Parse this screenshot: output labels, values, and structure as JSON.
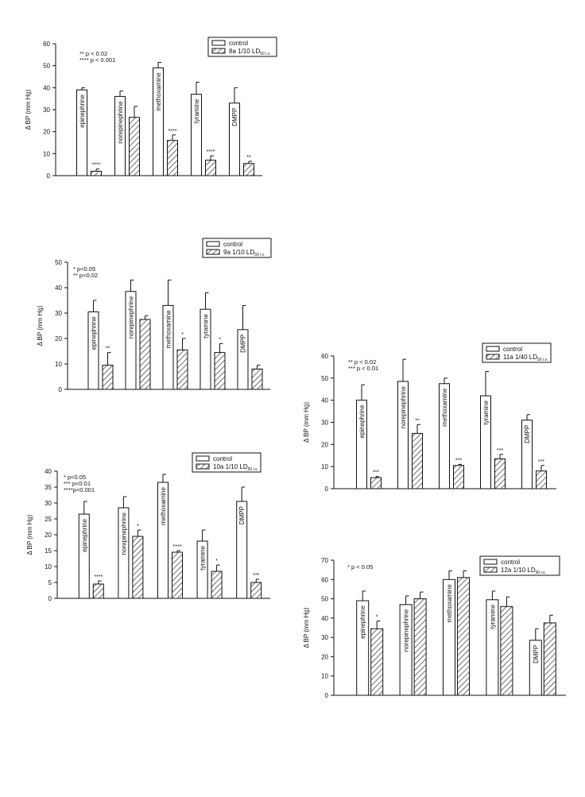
{
  "page": {
    "hatch_color": "#222222",
    "bar_fill_control": "#ffffff",
    "axis_color": "#111111"
  },
  "chart_data": [
    {
      "id": "chart-8a",
      "type": "bar",
      "ylabel": "Δ BP (mm Hg)",
      "ylim": [
        0,
        60
      ],
      "ytick_step": 10,
      "legend_position": "top-right",
      "legend": {
        "control": "control",
        "treated": "8a  1/10 LD",
        "treated_sub": "50 i.v."
      },
      "notes": [
        "** p < 0.02",
        "**** p < 0.001"
      ],
      "categories": [
        "epinephrine",
        "norepinephrine",
        "methoxamine",
        "tyramine",
        "DMPP"
      ],
      "series": [
        {
          "name": "control",
          "values": [
            39,
            36,
            49,
            37,
            33
          ],
          "errors": [
            1,
            2.5,
            2.5,
            5.5,
            7
          ],
          "stars": [
            "",
            "",
            "",
            "",
            ""
          ]
        },
        {
          "name": "8a  1/10 LD50 i.v.",
          "values": [
            2,
            26.5,
            16,
            7,
            5.5
          ],
          "errors": [
            1,
            5,
            2.5,
            2,
            1
          ],
          "stars": [
            "****",
            "",
            "****",
            "****",
            "**"
          ]
        }
      ]
    },
    {
      "id": "chart-9a",
      "type": "bar",
      "ylabel": "Δ BP (mm Hg)",
      "ylim": [
        0,
        50
      ],
      "ytick_step": 10,
      "legend_position": "top-right",
      "legend": {
        "control": "control",
        "treated": "9a  1/10 LD",
        "treated_sub": "50 i.v."
      },
      "notes": [
        "* p<0.05",
        "** p<0.02"
      ],
      "categories": [
        "epinephrine",
        "norepinephrine",
        "methoxamine",
        "tyramine",
        "DMPP"
      ],
      "series": [
        {
          "name": "control",
          "values": [
            30.5,
            38.5,
            33,
            31.5,
            23.5
          ],
          "errors": [
            4.5,
            4.5,
            10,
            6.5,
            9.5
          ],
          "stars": [
            "",
            "",
            "",
            "",
            ""
          ]
        },
        {
          "name": "9a  1/10 LD50 i.v.",
          "values": [
            9.5,
            27.5,
            15.5,
            14.5,
            8
          ],
          "errors": [
            5,
            1.5,
            4.5,
            3.5,
            1.5
          ],
          "stars": [
            "**",
            "",
            "*",
            "*",
            ""
          ]
        }
      ]
    },
    {
      "id": "chart-10a",
      "type": "bar",
      "ylabel": "Δ BP (mm Hg)",
      "ylim": [
        0,
        40
      ],
      "ytick_step": 5,
      "legend_position": "top-right",
      "legend": {
        "control": "control",
        "treated": "10a  1/10 LD",
        "treated_sub": "50 i.v."
      },
      "notes": [
        "* p<0.05",
        "*** p<0.01",
        "****p<0.001"
      ],
      "categories": [
        "epinephrine",
        "norepinephrine",
        "methoxamine",
        "tyramine",
        "DMPP"
      ],
      "series": [
        {
          "name": "control",
          "values": [
            26.5,
            28.5,
            36.5,
            18,
            30.5
          ],
          "errors": [
            4,
            3.5,
            2.5,
            3.5,
            4.5
          ],
          "stars": [
            "",
            "",
            "",
            "",
            ""
          ]
        },
        {
          "name": "10a  1/10 LD50 i.v.",
          "values": [
            4.5,
            19.5,
            14.5,
            8.5,
            5
          ],
          "errors": [
            1,
            2,
            0.5,
            2,
            1
          ],
          "stars": [
            "****",
            "*",
            "****",
            "*",
            "***"
          ]
        }
      ]
    },
    {
      "id": "chart-11a",
      "type": "bar",
      "ylabel": "Δ BP (mm Hg)",
      "ylim": [
        0,
        60
      ],
      "ytick_step": 10,
      "legend_position": "top-right",
      "legend": {
        "control": "control",
        "treated": "11a  1/40 LD",
        "treated_sub": "50 i.v."
      },
      "notes": [
        "** p < 0.02",
        "*** p < 0.01"
      ],
      "categories": [
        "epinephrine",
        "norepinephrine",
        "methoxamine",
        "tyramine",
        "DMPP"
      ],
      "series": [
        {
          "name": "control",
          "values": [
            40,
            48.5,
            47.5,
            42,
            31
          ],
          "errors": [
            7,
            10,
            2.5,
            11,
            2.5
          ],
          "stars": [
            "",
            "",
            "",
            "",
            ""
          ]
        },
        {
          "name": "11a  1/40 LD50 i.v.",
          "values": [
            5,
            25,
            10.5,
            13.5,
            8
          ],
          "errors": [
            0.5,
            4,
            0.5,
            2,
            2.5
          ],
          "stars": [
            "***",
            "**",
            "***",
            "***",
            "***"
          ]
        }
      ]
    },
    {
      "id": "chart-12a",
      "type": "bar",
      "ylabel": "Δ BP (mm Hg)",
      "ylim": [
        0,
        70
      ],
      "ytick_step": 10,
      "legend_position": "top-right",
      "legend": {
        "control": "control",
        "treated": "12a  1/10 LD",
        "treated_sub": "50 i.v."
      },
      "notes": [
        "* p < 0.05"
      ],
      "categories": [
        "epinephrine",
        "norepinephrine",
        "methoxamine",
        "tyramine",
        "DMPP"
      ],
      "series": [
        {
          "name": "control",
          "values": [
            49,
            47,
            60,
            49.5,
            28.5
          ],
          "errors": [
            5,
            4.5,
            4.5,
            4.5,
            6
          ],
          "stars": [
            "",
            "",
            "",
            "",
            ""
          ]
        },
        {
          "name": "12a  1/10 LD50 i.v.",
          "values": [
            34.5,
            50,
            61,
            46,
            37.5
          ],
          "errors": [
            4,
            3.5,
            3.5,
            5,
            4
          ],
          "stars": [
            "*",
            "",
            "",
            "",
            ""
          ]
        }
      ]
    }
  ]
}
